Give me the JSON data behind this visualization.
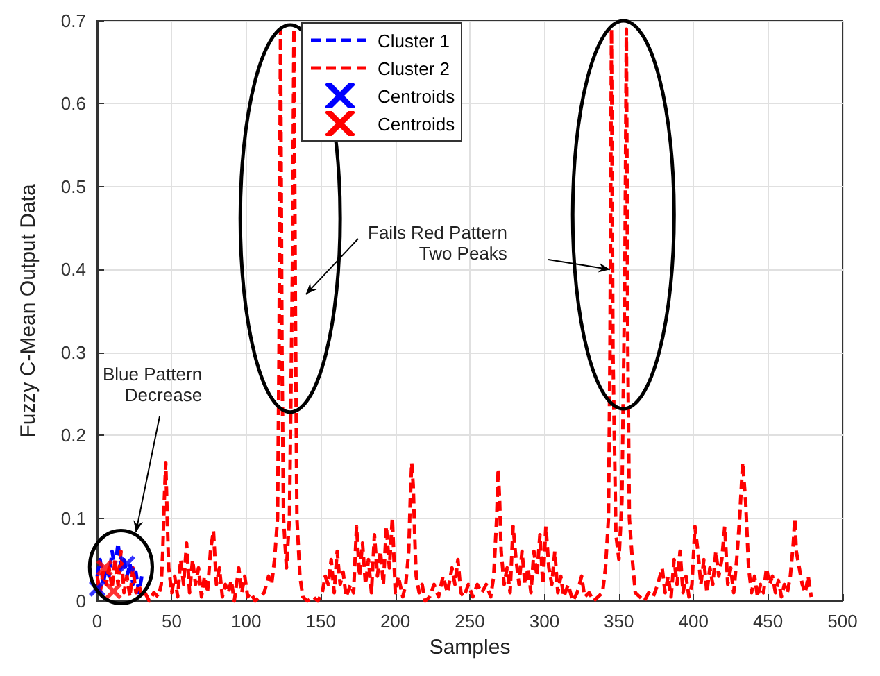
{
  "chart_data": {
    "type": "line",
    "xlabel": "Samples",
    "ylabel": "Fuzzy C-Mean Output Data",
    "xlim": [
      0,
      500
    ],
    "xticks": [
      0,
      50,
      100,
      150,
      200,
      250,
      300,
      350,
      400,
      450,
      500
    ],
    "ylim": [
      0,
      0.7
    ],
    "yticks": [
      0,
      0.1,
      0.2,
      0.3,
      0.4,
      0.5,
      0.6,
      0.7
    ],
    "grid": true,
    "legend": "top",
    "line_style": "dashed",
    "marker": "none",
    "annotations": [
      "Fails Red Pattern\nTwo Peaks",
      "Blue Pattern\nDecrease"
    ],
    "series": [
      {
        "name": "Cluster 1",
        "color": "#0000ff",
        "x": [
          0,
          2,
          4,
          6,
          8,
          10,
          12,
          14,
          16,
          18,
          20,
          22,
          24,
          26,
          28,
          30
        ],
        "values": [
          0.03,
          0.05,
          0.02,
          0.04,
          0.03,
          0.06,
          0.04,
          0.07,
          0.04,
          0.05,
          0.03,
          0.045,
          0.02,
          0.035,
          0.01,
          0.03
        ]
      },
      {
        "name": "Cluster 2",
        "color": "#ff0000",
        "x": [
          0,
          2,
          4,
          6,
          8,
          10,
          12,
          14,
          16,
          18,
          20,
          22,
          24,
          26,
          28,
          30,
          32,
          35,
          38,
          41,
          43,
          44,
          45,
          46,
          47,
          48,
          50,
          52,
          54,
          56,
          58,
          60,
          62,
          64,
          66,
          68,
          70,
          72,
          74,
          76,
          78,
          80,
          82,
          84,
          86,
          88,
          90,
          92,
          95,
          97,
          99,
          101,
          103,
          106,
          109,
          112,
          115,
          117,
          119,
          121,
          122,
          123,
          124,
          125,
          127,
          129,
          131,
          132,
          133,
          134,
          136,
          138,
          141,
          145,
          148,
          151,
          153,
          155,
          157,
          159,
          161,
          163,
          165,
          167,
          170,
          172,
          174,
          176,
          178,
          180,
          182,
          184,
          186,
          188,
          190,
          192,
          194,
          196,
          198,
          200,
          202,
          205,
          207,
          209,
          210,
          211,
          212,
          213,
          214,
          216,
          218,
          220,
          223,
          226,
          229,
          232,
          235,
          238,
          240,
          242,
          244,
          246,
          249,
          252,
          255,
          258,
          261,
          264,
          266,
          268,
          269,
          270,
          271,
          273,
          275,
          277,
          279,
          281,
          283,
          285,
          287,
          289,
          291,
          293,
          295,
          297,
          299,
          301,
          303,
          305,
          307,
          309,
          311,
          313,
          316,
          319,
          322,
          325,
          327,
          330,
          333,
          336,
          339,
          341,
          343,
          344,
          345,
          346,
          348,
          350,
          352,
          354,
          355,
          356,
          357,
          359,
          361,
          364,
          367,
          370,
          373,
          376,
          379,
          381,
          383,
          385,
          387,
          389,
          391,
          393,
          395,
          397,
          399,
          401,
          403,
          405,
          407,
          409,
          411,
          413,
          415,
          417,
          419,
          421,
          423,
          425,
          427,
          429,
          431,
          433,
          435,
          437,
          439,
          441,
          443,
          445,
          447,
          449,
          451,
          453,
          455,
          457,
          459,
          461,
          463,
          465,
          467,
          468,
          469,
          471,
          473,
          475,
          477,
          479
        ],
        "values": [
          0.03,
          0.01,
          0.035,
          0.02,
          0.04,
          0.015,
          0.05,
          0.02,
          0.06,
          0.01,
          0.03,
          0.005,
          0.04,
          0.01,
          0.02,
          0.005,
          0.01,
          0,
          0.01,
          0.005,
          0.02,
          0.06,
          0.12,
          0.167,
          0.1,
          0.04,
          0.01,
          0.03,
          0.005,
          0.05,
          0.02,
          0.07,
          0.01,
          0.05,
          0.02,
          0.04,
          0.005,
          0.03,
          0.01,
          0.06,
          0.085,
          0.02,
          0.04,
          0.005,
          0.02,
          0.01,
          0.025,
          0,
          0.04,
          0.01,
          0.03,
          0.005,
          0.01,
          0,
          0.005,
          0.01,
          0.03,
          0.02,
          0.05,
          0.1,
          0.3,
          0.69,
          0.3,
          0.1,
          0.04,
          0.1,
          0.4,
          0.69,
          0.35,
          0.1,
          0.03,
          0.005,
          0,
          0.005,
          0,
          0.01,
          0.03,
          0.02,
          0.05,
          0.01,
          0.06,
          0.02,
          0.035,
          0.005,
          0.02,
          0.01,
          0.09,
          0.03,
          0.07,
          0.02,
          0.05,
          0.01,
          0.08,
          0.03,
          0.06,
          0.02,
          0.09,
          0.04,
          0.1,
          0.01,
          0.03,
          0.005,
          0.02,
          0.06,
          0.12,
          0.167,
          0.14,
          0.08,
          0.03,
          0.01,
          0.02,
          0,
          0.005,
          0.02,
          0.005,
          0.03,
          0.01,
          0.04,
          0.02,
          0.05,
          0.01,
          0.005,
          0.02,
          0.005,
          0.02,
          0.01,
          0.02,
          0.005,
          0.03,
          0.1,
          0.16,
          0.12,
          0.06,
          0.02,
          0.04,
          0.01,
          0.09,
          0.05,
          0.02,
          0.06,
          0.02,
          0.04,
          0.01,
          0.06,
          0.03,
          0.08,
          0.02,
          0.09,
          0.04,
          0.02,
          0.06,
          0.01,
          0.03,
          0.005,
          0.02,
          0,
          0.01,
          0.03,
          0.005,
          0.01,
          0,
          0.005,
          0.01,
          0.04,
          0.1,
          0.3,
          0.69,
          0.3,
          0.08,
          0.05,
          0.12,
          0.4,
          0.69,
          0.3,
          0.1,
          0.05,
          0.01,
          0.005,
          0,
          0.01,
          0.005,
          0.02,
          0.04,
          0.01,
          0.03,
          0.005,
          0.05,
          0.02,
          0.06,
          0.01,
          0.03,
          0.005,
          0.02,
          0.09,
          0.06,
          0.02,
          0.05,
          0.01,
          0.04,
          0.02,
          0.06,
          0.03,
          0.05,
          0.09,
          0.02,
          0.04,
          0.01,
          0.05,
          0.1,
          0.167,
          0.12,
          0.04,
          0.01,
          0.03,
          0.005,
          0.02,
          0.01,
          0.04,
          0.02,
          0.03,
          0.01,
          0.025,
          0.005,
          0.02,
          0.01,
          0.03,
          0.07,
          0.1,
          0.06,
          0.04,
          0.02,
          0.01,
          0.03,
          0.005
        ]
      },
      {
        "name": "Centroids",
        "type": "scatter",
        "marker": "cross",
        "color": "#0000ff",
        "x": [
          0,
          20
        ],
        "values": [
          0.015,
          0.045
        ]
      },
      {
        "name": "Centroids",
        "type": "scatter",
        "marker": "cross",
        "color": "#ff0000",
        "x": [
          5,
          11
        ],
        "values": [
          0.04,
          0.012
        ]
      }
    ]
  }
}
